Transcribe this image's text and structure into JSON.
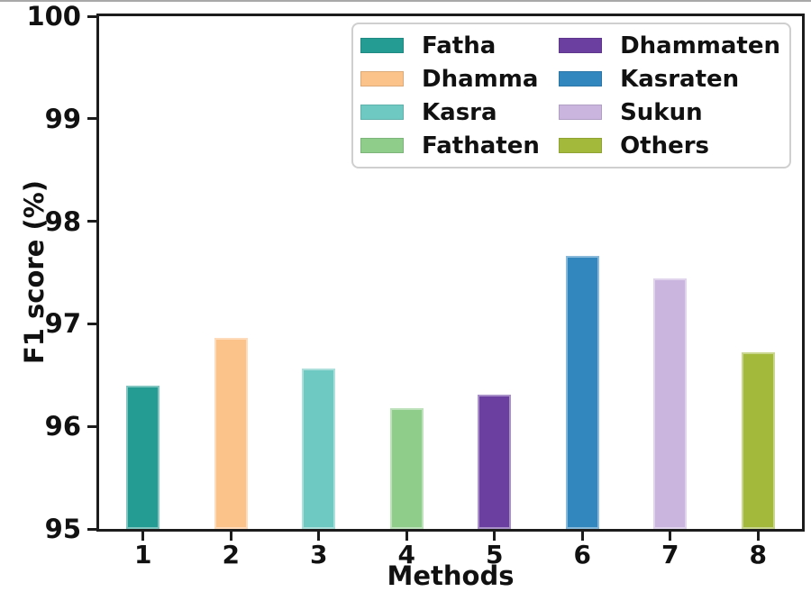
{
  "chart_data": {
    "type": "bar",
    "title": "",
    "xlabel": "Methods",
    "ylabel": "F1 score (%)",
    "ylim": [
      95,
      100
    ],
    "yticks": [
      95,
      96,
      97,
      98,
      99,
      100
    ],
    "grid": false,
    "legend_position": "upper right inside plot, 2 columns",
    "categories": [
      "1",
      "2",
      "3",
      "4",
      "5",
      "6",
      "7",
      "8"
    ],
    "bars": [
      {
        "category": "1",
        "name": "Fatha",
        "value": 96.4,
        "color": "#259c93"
      },
      {
        "category": "2",
        "name": "Dhamma",
        "value": 96.86,
        "color": "#fbc28a"
      },
      {
        "category": "3",
        "name": "Kasra",
        "value": 96.56,
        "color": "#6ec9c3"
      },
      {
        "category": "4",
        "name": "Fathaten",
        "value": 96.18,
        "color": "#8ecd8a"
      },
      {
        "category": "5",
        "name": "Dhammaten",
        "value": 96.31,
        "color": "#6b3fa0"
      },
      {
        "category": "6",
        "name": "Kasraten",
        "value": 97.66,
        "color": "#3387bf"
      },
      {
        "category": "7",
        "name": "Sukun",
        "value": 97.44,
        "color": "#c9b5dd"
      },
      {
        "category": "8",
        "name": "Others",
        "value": 96.72,
        "color": "#a3b93c"
      }
    ],
    "legend_columns": [
      [
        "Fatha",
        "Dhamma",
        "Kasra",
        "Fathaten"
      ],
      [
        "Dhammaten",
        "Kasraten",
        "Sukun",
        "Others"
      ]
    ]
  }
}
